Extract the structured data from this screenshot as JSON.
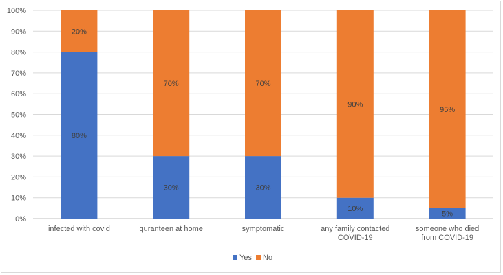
{
  "chart_data": {
    "type": "bar",
    "stacked": true,
    "percent": true,
    "title": "",
    "xlabel": "",
    "ylabel": "",
    "ylim": [
      0,
      100
    ],
    "yticks": [
      "0%",
      "10%",
      "20%",
      "30%",
      "40%",
      "50%",
      "60%",
      "70%",
      "80%",
      "90%",
      "100%"
    ],
    "grid": true,
    "legend_position": "bottom",
    "categories": [
      [
        "infected with covid"
      ],
      [
        "quranteen at home"
      ],
      [
        "symptomatic"
      ],
      [
        "any family contacted",
        "COVID-19"
      ],
      [
        "someone who died",
        "from COVID-19"
      ]
    ],
    "series": [
      {
        "name": "Yes",
        "color": "#4472c4",
        "values": [
          80,
          30,
          30,
          10,
          5
        ],
        "labels": [
          "80%",
          "30%",
          "30%",
          "10%",
          "5%"
        ]
      },
      {
        "name": "No",
        "color": "#ed7d31",
        "values": [
          20,
          70,
          70,
          90,
          95
        ],
        "labels": [
          "20%",
          "70%",
          "70%",
          "90%",
          "95%"
        ]
      }
    ]
  }
}
